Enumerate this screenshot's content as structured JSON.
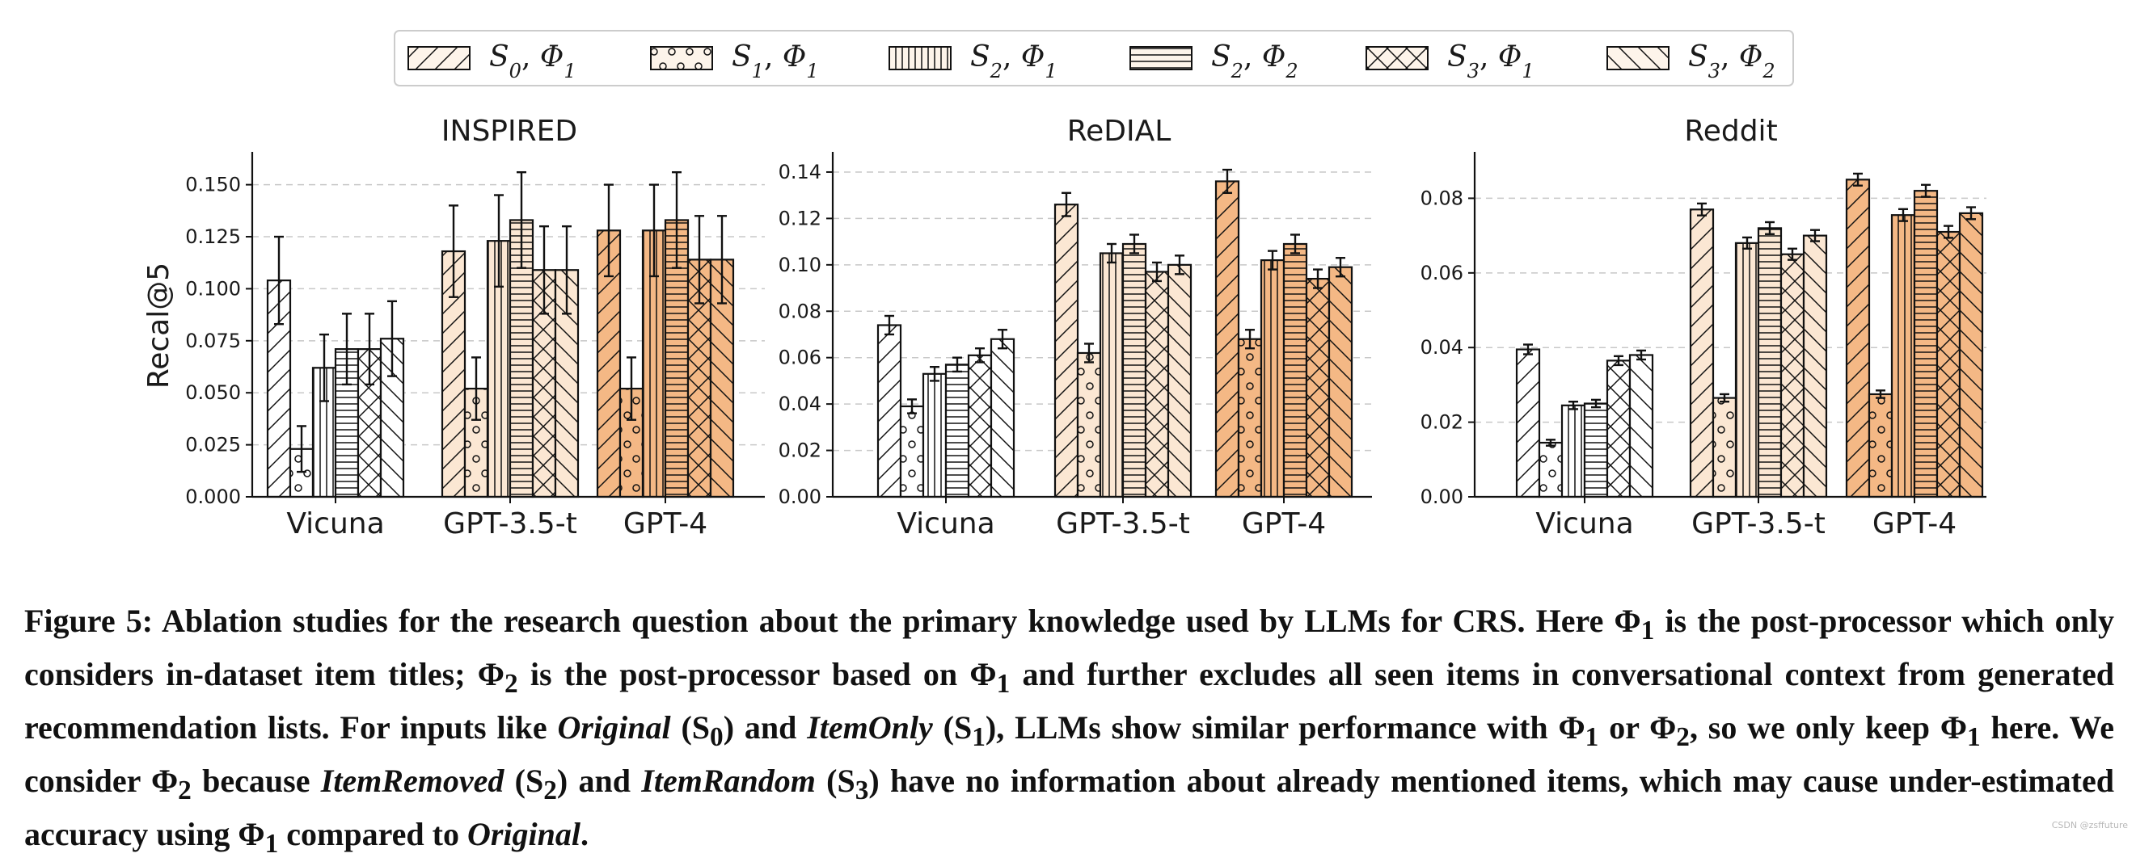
{
  "chart_data": {
    "type": "bar",
    "legend": {
      "placement": "top-center",
      "entries": [
        {
          "label": "S0, Φ1",
          "hatch": "diag"
        },
        {
          "label": "S1, Φ1",
          "hatch": "circles"
        },
        {
          "label": "S2, Φ1",
          "hatch": "vlines"
        },
        {
          "label": "S2, Φ2",
          "hatch": "hlines"
        },
        {
          "label": "S3, Φ1",
          "hatch": "cross"
        },
        {
          "label": "S3, Φ2",
          "hatch": "backdiag"
        }
      ]
    },
    "category_colors": [
      "#ffffff",
      "#fbe7d3",
      "#f4b885"
    ],
    "ylabel": "Recal@5",
    "panels": [
      {
        "title": "INSPIRED",
        "categories": [
          "Vicuna",
          "GPT-3.5-t",
          "GPT-4"
        ],
        "ylim": [
          0,
          0.165
        ],
        "yticks": [
          "0.000",
          "0.025",
          "0.050",
          "0.075",
          "0.100",
          "0.125",
          "0.150"
        ],
        "series": [
          {
            "name": "S0, Φ1",
            "values": [
              0.104,
              0.118,
              0.128
            ],
            "errors": [
              0.021,
              0.022,
              0.022
            ]
          },
          {
            "name": "S1, Φ1",
            "values": [
              0.023,
              0.052,
              0.052
            ],
            "errors": [
              0.011,
              0.015,
              0.015
            ]
          },
          {
            "name": "S2, Φ1",
            "values": [
              0.062,
              0.123,
              0.128
            ],
            "errors": [
              0.016,
              0.022,
              0.022
            ]
          },
          {
            "name": "S2, Φ2",
            "values": [
              0.071,
              0.133,
              0.133
            ],
            "errors": [
              0.017,
              0.023,
              0.023
            ]
          },
          {
            "name": "S3, Φ1",
            "values": [
              0.071,
              0.109,
              0.114
            ],
            "errors": [
              0.017,
              0.021,
              0.021
            ]
          },
          {
            "name": "S3, Φ2",
            "values": [
              0.076,
              0.109,
              0.114
            ],
            "errors": [
              0.018,
              0.021,
              0.021
            ]
          }
        ]
      },
      {
        "title": "ReDIAL",
        "categories": [
          "Vicuna",
          "GPT-3.5-t",
          "GPT-4"
        ],
        "ylim": [
          0,
          0.148
        ],
        "yticks": [
          "0.00",
          "0.02",
          "0.04",
          "0.06",
          "0.08",
          "0.10",
          "0.12",
          "0.14"
        ],
        "series": [
          {
            "name": "S0, Φ1",
            "values": [
              0.074,
              0.126,
              0.136
            ],
            "errors": [
              0.004,
              0.005,
              0.005
            ]
          },
          {
            "name": "S1, Φ1",
            "values": [
              0.039,
              0.062,
              0.068
            ],
            "errors": [
              0.003,
              0.004,
              0.004
            ]
          },
          {
            "name": "S2, Φ1",
            "values": [
              0.053,
              0.105,
              0.102
            ],
            "errors": [
              0.003,
              0.004,
              0.004
            ]
          },
          {
            "name": "S2, Φ2",
            "values": [
              0.057,
              0.109,
              0.109
            ],
            "errors": [
              0.003,
              0.004,
              0.004
            ]
          },
          {
            "name": "S3, Φ1",
            "values": [
              0.061,
              0.097,
              0.094
            ],
            "errors": [
              0.003,
              0.004,
              0.004
            ]
          },
          {
            "name": "S3, Φ2",
            "values": [
              0.068,
              0.1,
              0.099
            ],
            "errors": [
              0.004,
              0.004,
              0.004
            ]
          }
        ]
      },
      {
        "title": "Reddit",
        "categories": [
          "Vicuna",
          "GPT-3.5-t",
          "GPT-4"
        ],
        "ylim": [
          0,
          0.092
        ],
        "yticks": [
          "0.00",
          "0.02",
          "0.04",
          "0.06",
          "0.08"
        ],
        "series": [
          {
            "name": "S0, Φ1",
            "values": [
              0.0395,
              0.077,
              0.085
            ],
            "errors": [
              0.0013,
              0.0016,
              0.0016
            ]
          },
          {
            "name": "S1, Φ1",
            "values": [
              0.0145,
              0.0265,
              0.0275
            ],
            "errors": [
              0.0008,
              0.001,
              0.001
            ]
          },
          {
            "name": "S2, Φ1",
            "values": [
              0.0245,
              0.068,
              0.0755
            ],
            "errors": [
              0.001,
              0.0015,
              0.0016
            ]
          },
          {
            "name": "S2, Φ2",
            "values": [
              0.025,
              0.072,
              0.082
            ],
            "errors": [
              0.001,
              0.0016,
              0.0016
            ]
          },
          {
            "name": "S3, Φ1",
            "values": [
              0.0365,
              0.065,
              0.071
            ],
            "errors": [
              0.0012,
              0.0015,
              0.0016
            ]
          },
          {
            "name": "S3, Φ2",
            "values": [
              0.038,
              0.07,
              0.076
            ],
            "errors": [
              0.0012,
              0.0015,
              0.0016
            ]
          }
        ]
      }
    ]
  },
  "caption": {
    "p1": "Figure 5: Ablation studies for the research question about the primary knowledge used by LLMs for CRS. Here Φ",
    "s1": "1",
    "p2": " is the post-processor which only considers in-dataset item titles; Φ",
    "s2": "2",
    "p3": " is the post-processor based on Φ",
    "s3": "1",
    "p4": " and further excludes all seen items in conversational context from generated recommendation lists. For inputs like ",
    "e1": "Original",
    "p5": " (S",
    "s4": "0",
    "p6": ") and ",
    "e2": "ItemOnly",
    "p7": " (S",
    "s5": "1",
    "p8": "), LLMs show similar performance with Φ",
    "s6": "1",
    "p9": " or Φ",
    "s7": "2",
    "p10": ", so we only keep Φ",
    "s8": "1",
    "p11": " here. We consider Φ",
    "s9": "2",
    "p12": " because ",
    "e3": "ItemRemoved",
    "p13": " (S",
    "s10": "2",
    "p14": ") and ",
    "e4": "ItemRandom",
    "p15": " (S",
    "s11": "3",
    "p16": ") have no information about already mentioned items, which may cause under-estimated accuracy using Φ",
    "s12": "1",
    "p17": " compared to ",
    "e5": "Original",
    "p18": "."
  },
  "watermark": "CSDN @zsffuture"
}
